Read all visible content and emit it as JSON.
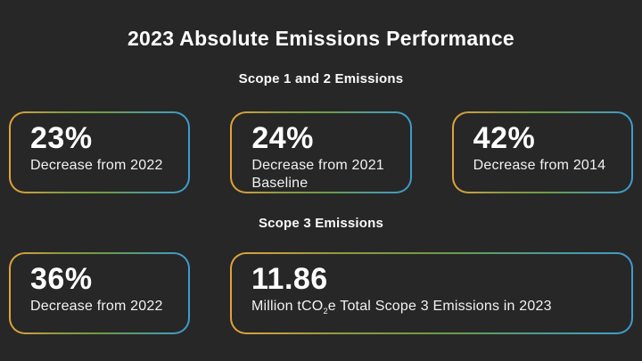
{
  "page": {
    "title": "2023 Absolute Emissions Performance",
    "background_color": "#272727",
    "text_color": "#ffffff"
  },
  "border_gradient": {
    "left": "#E2A23B",
    "middle": "#6E9B45",
    "right": "#3E9CCE"
  },
  "sections": [
    {
      "label": "Scope 1 and 2 Emissions",
      "cards": [
        {
          "value": "23%",
          "description": "Decrease from 2022"
        },
        {
          "value": "24%",
          "description": "Decrease from 2021 Baseline"
        },
        {
          "value": "42%",
          "description": "Decrease from 2014"
        }
      ]
    },
    {
      "label": "Scope 3 Emissions",
      "cards": [
        {
          "value": "36%",
          "description": "Decrease from 2022"
        },
        {
          "value": "11.86",
          "desc_pre": "Million tCO",
          "desc_sub": "2",
          "desc_post": "e Total Scope 3 Emissions in 2023"
        }
      ]
    }
  ],
  "chart_data": {
    "type": "table",
    "title": "2023 Absolute Emissions Performance",
    "groups": [
      {
        "label": "Scope 1 and 2 Emissions",
        "stats": [
          {
            "value_pct": 23,
            "display": "23%",
            "note": "Decrease from 2022"
          },
          {
            "value_pct": 24,
            "display": "24%",
            "note": "Decrease from 2021 Baseline"
          },
          {
            "value_pct": 42,
            "display": "42%",
            "note": "Decrease from 2014"
          }
        ]
      },
      {
        "label": "Scope 3 Emissions",
        "stats": [
          {
            "value_pct": 36,
            "display": "36%",
            "note": "Decrease from 2022"
          },
          {
            "value": 11.86,
            "display": "11.86",
            "note": "Million tCO2e Total Scope 3 Emissions in 2023"
          }
        ]
      }
    ]
  }
}
